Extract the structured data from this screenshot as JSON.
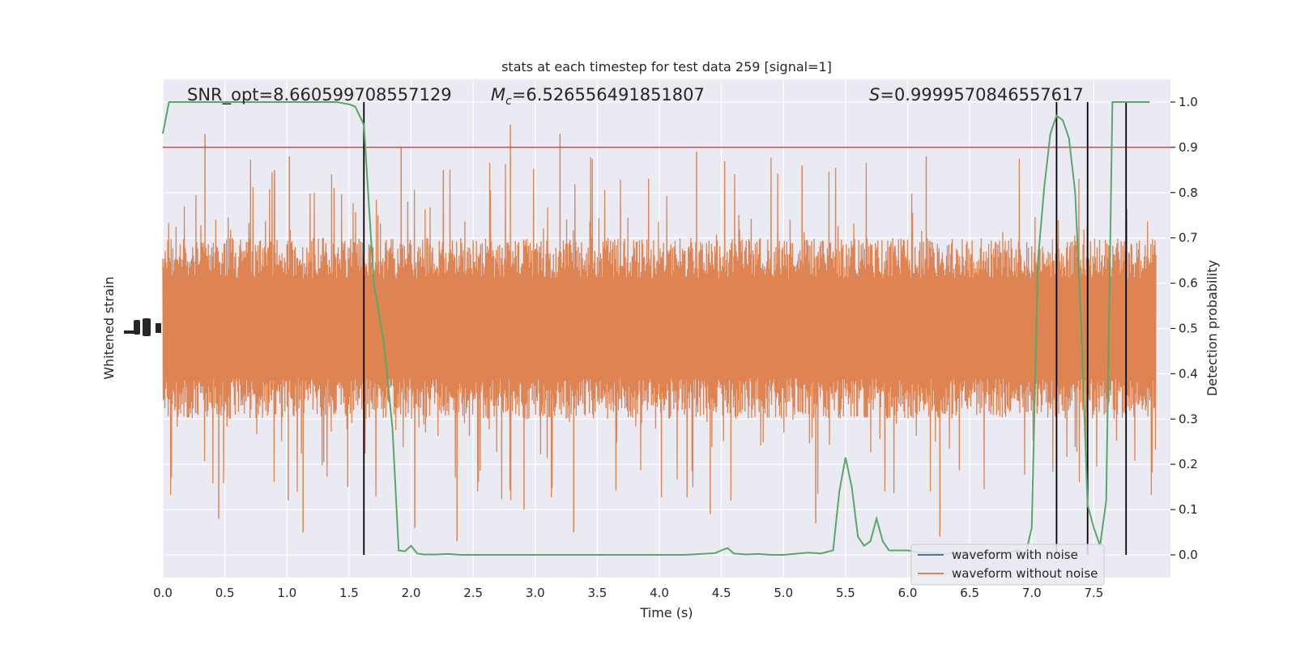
{
  "chart_data": {
    "type": "line",
    "title": "stats at each timestep for test data 259 [signal=1]",
    "xlabel": "Time (s)",
    "ylabel_left": "Whitened strain",
    "ylabel_right": "Detection probability",
    "xlim": [
      0.0,
      8.0
    ],
    "ylim_right": [
      -0.05,
      1.05
    ],
    "x_ticks": [
      "0.0",
      "0.5",
      "1.0",
      "1.5",
      "2.0",
      "2.5",
      "3.0",
      "3.5",
      "4.0",
      "4.5",
      "5.0",
      "5.5",
      "6.0",
      "6.5",
      "7.0",
      "7.5"
    ],
    "right_ticks": [
      "0.0",
      "0.1",
      "0.2",
      "0.3",
      "0.4",
      "0.5",
      "0.6",
      "0.7",
      "0.8",
      "0.9",
      "1.0"
    ],
    "grid": true,
    "annotations": {
      "snr": "SNR_opt=8.660599708557129",
      "mc": "=6.526556491851807",
      "s": "=0.9999570846557617"
    },
    "threshold": 0.9,
    "detection_times": [
      1.62,
      7.2,
      7.45,
      7.76
    ],
    "legend": {
      "placement": "lower right",
      "entries": [
        "waveform with noise",
        "waveform without noise"
      ]
    },
    "series": [
      {
        "name": "waveform with noise",
        "color": "#4c72b0"
      },
      {
        "name": "waveform without noise",
        "color": "#dd8452",
        "x_range": [
          0.0,
          8.0
        ],
        "band_center": 0.5,
        "band_half_width": 0.2,
        "peaks_upper": [
          0.93,
          0.85,
          0.88,
          0.81,
          0.9,
          0.85,
          0.95,
          0.93,
          0.89,
          0.86,
          0.88
        ],
        "peaks_lower": [
          0.08,
          0.12,
          0.05,
          0.15,
          0.06,
          0.03,
          0.1,
          0.05,
          0.09,
          0.07,
          0.04
        ]
      },
      {
        "name": "",
        "color": "#55a868",
        "x": [
          0.0,
          0.05,
          0.1,
          0.2,
          0.3,
          0.4,
          0.5,
          0.6,
          0.7,
          0.8,
          0.9,
          1.0,
          1.1,
          1.2,
          1.3,
          1.4,
          1.5,
          1.55,
          1.62,
          1.7,
          1.78,
          1.85,
          1.9,
          1.95,
          2.0,
          2.05,
          2.1,
          2.2,
          2.3,
          2.4,
          2.5,
          2.6,
          2.8,
          3.0,
          3.2,
          3.4,
          3.6,
          3.8,
          4.0,
          4.2,
          4.4,
          4.45,
          4.5,
          4.55,
          4.6,
          4.7,
          4.8,
          4.9,
          5.0,
          5.2,
          5.3,
          5.4,
          5.45,
          5.5,
          5.55,
          5.6,
          5.65,
          5.7,
          5.75,
          5.8,
          5.85,
          5.9,
          6.0,
          6.1,
          6.2,
          6.3,
          6.4,
          6.5,
          6.6,
          6.7,
          6.8,
          6.9,
          6.95,
          7.0,
          7.05,
          7.1,
          7.15,
          7.2,
          7.25,
          7.3,
          7.35,
          7.4,
          7.45,
          7.5,
          7.55,
          7.6,
          7.65,
          7.7,
          7.75,
          7.8,
          7.85,
          7.9,
          7.95
        ],
        "y": [
          0.93,
          1.0,
          1.0,
          1.0,
          1.0,
          1.0,
          1.0,
          1.0,
          1.0,
          1.0,
          1.0,
          1.0,
          1.0,
          1.0,
          1.0,
          1.0,
          0.995,
          0.99,
          0.95,
          0.6,
          0.47,
          0.28,
          0.01,
          0.008,
          0.02,
          0.003,
          0.001,
          0.001,
          0.002,
          0.0,
          0.0,
          0.0,
          0.0,
          0.0,
          0.0,
          0.0,
          0.0,
          0.0,
          0.0,
          0.0,
          0.003,
          0.004,
          0.01,
          0.015,
          0.003,
          0.001,
          0.002,
          0.0,
          0.0,
          0.005,
          0.003,
          0.01,
          0.14,
          0.215,
          0.15,
          0.04,
          0.02,
          0.03,
          0.08,
          0.03,
          0.01,
          0.01,
          0.01,
          0.005,
          0.005,
          0.002,
          0.005,
          0.0,
          0.005,
          0.003,
          0.005,
          0.01,
          0.0,
          0.06,
          0.65,
          0.81,
          0.93,
          0.97,
          0.96,
          0.92,
          0.8,
          0.5,
          0.11,
          0.06,
          0.02,
          0.12,
          1.0,
          1.0,
          1.0,
          1.0,
          1.0,
          1.0,
          1.0
        ]
      }
    ]
  }
}
